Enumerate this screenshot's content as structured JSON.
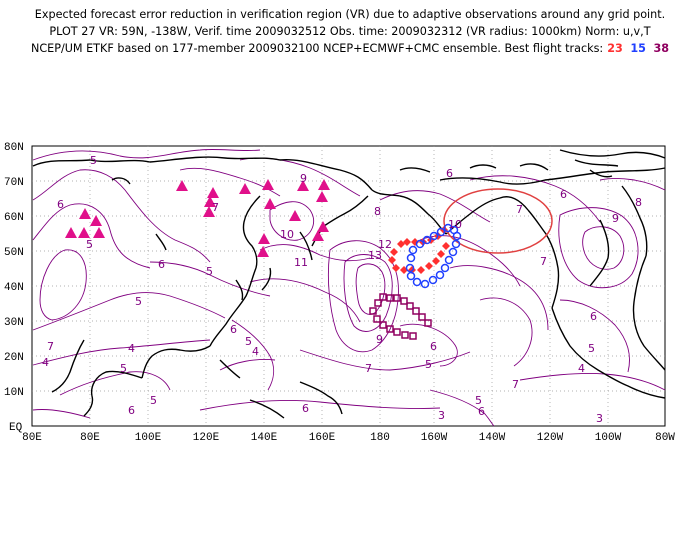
{
  "header": {
    "line1": "Expected forecast error reduction in verification region (VR) due to adaptive observations around any grid point.",
    "line2": "PLOT 27 VR: 59N, -138W, Verif. time 2009032512 Obs. time: 2009032312 (VR radius: 1000km) Norm: u,v,T",
    "line3_prefix": "NCEP/UM ETKF based on 177-member 2009032100 NCEP+ECMWF+CMC ensemble. Best flight tracks:",
    "track_a": "23",
    "track_b": "15",
    "track_c": "38"
  },
  "colors": {
    "track_a": "#ff3030",
    "track_b": "#2040ff",
    "track_c": "#900060",
    "contour": "#800080",
    "coast": "#000000",
    "verification_circle": "#e04040",
    "triangle": "#e0108a"
  },
  "axes": {
    "lat_labels": [
      "80N",
      "70N",
      "60N",
      "50N",
      "40N",
      "30N",
      "20N",
      "10N",
      "EQ"
    ],
    "lon_labels": [
      "80E",
      "80E",
      "100E",
      "120E",
      "140E",
      "160E",
      "180",
      "160W",
      "140W",
      "120W",
      "100W",
      "80W"
    ]
  },
  "contour_labels": [
    "5",
    "5",
    "5",
    "5",
    "5",
    "5",
    "5",
    "5",
    "6",
    "6",
    "6",
    "6",
    "6",
    "6",
    "6",
    "6",
    "6",
    "7",
    "7",
    "7",
    "7",
    "7",
    "7",
    "8",
    "8",
    "9",
    "9",
    "9",
    "10",
    "10",
    "11",
    "12",
    "13",
    "4",
    "4",
    "4",
    "4",
    "3",
    "3",
    "6",
    "5",
    "5"
  ],
  "verification_region": {
    "center_lon": -138,
    "center_lat": 59,
    "radius_km": 1000
  }
}
